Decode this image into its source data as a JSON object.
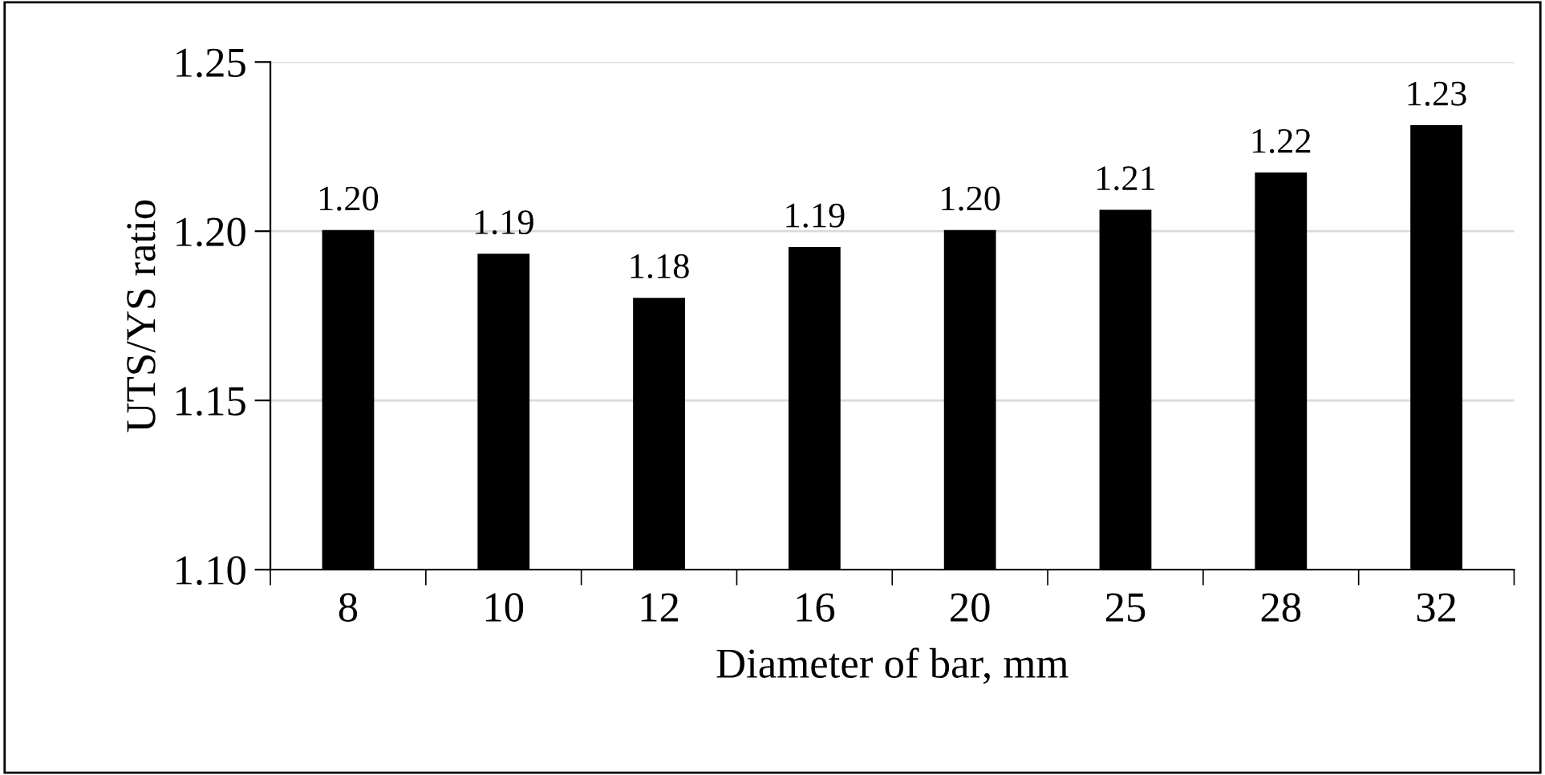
{
  "chart_data": {
    "type": "bar",
    "xlabel": "Diameter of bar, mm",
    "ylabel": "UTS/YS ratio",
    "categories": [
      "8",
      "10",
      "12",
      "16",
      "20",
      "25",
      "28",
      "32"
    ],
    "values": [
      1.2,
      1.193,
      1.18,
      1.195,
      1.2,
      1.206,
      1.217,
      1.231
    ],
    "value_labels": [
      "1.20",
      "1.19",
      "1.18",
      "1.19",
      "1.20",
      "1.21",
      "1.22",
      "1.23"
    ],
    "color": "#000000",
    "ylim": [
      1.1,
      1.25
    ],
    "yticks": [
      {
        "value": 1.1,
        "label": "1.10"
      },
      {
        "value": 1.15,
        "label": "1.15"
      },
      {
        "value": 1.2,
        "label": "1.20"
      },
      {
        "value": 1.25,
        "label": "1.25"
      }
    ],
    "grid": "y"
  }
}
